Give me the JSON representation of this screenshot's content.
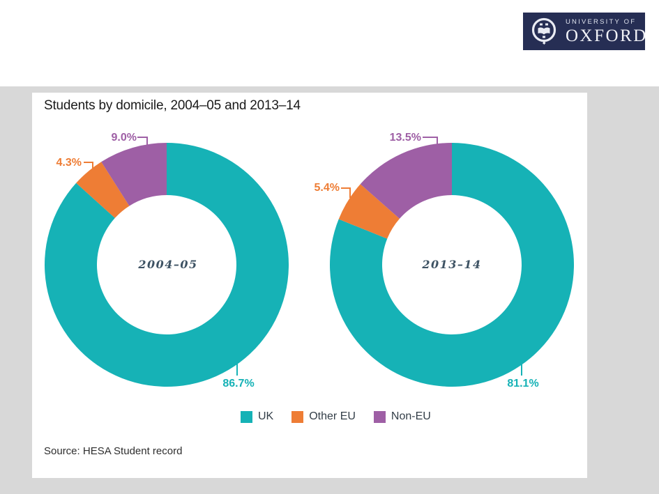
{
  "header": {
    "logo": {
      "line1": "UNIVERSITY OF",
      "line2": "OXFORD",
      "bg_color": "#262e54"
    }
  },
  "panel": {
    "title": "Students by domicile, 2004–05 and 2013–14",
    "source": "Source: HESA Student record"
  },
  "legend": {
    "items": [
      {
        "label": "UK",
        "color": "#16b2b6"
      },
      {
        "label": "Other EU",
        "color": "#ee7d35"
      },
      {
        "label": "Non-EU",
        "color": "#9e5fa5"
      }
    ]
  },
  "chart_data": [
    {
      "type": "pie",
      "subtype": "donut",
      "title": "2004–05",
      "start_angle_deg": 0,
      "direction": "clockwise",
      "inner_radius_ratio": 0.57,
      "slices": [
        {
          "label": "UK",
          "value": 86.7,
          "pct_label": "86.7%",
          "color": "#16b2b6"
        },
        {
          "label": "Other EU",
          "value": 4.3,
          "pct_label": "4.3%",
          "color": "#ee7d35"
        },
        {
          "label": "Non-EU",
          "value": 9.0,
          "pct_label": "9.0%",
          "color": "#9e5fa5"
        }
      ]
    },
    {
      "type": "pie",
      "subtype": "donut",
      "title": "2013–14",
      "start_angle_deg": 0,
      "direction": "clockwise",
      "inner_radius_ratio": 0.57,
      "slices": [
        {
          "label": "UK",
          "value": 81.1,
          "pct_label": "81.1%",
          "color": "#16b2b6"
        },
        {
          "label": "Other EU",
          "value": 5.4,
          "pct_label": "5.4%",
          "color": "#ee7d35"
        },
        {
          "label": "Non-EU",
          "value": 13.5,
          "pct_label": "13.5%",
          "color": "#9e5fa5"
        }
      ]
    }
  ]
}
